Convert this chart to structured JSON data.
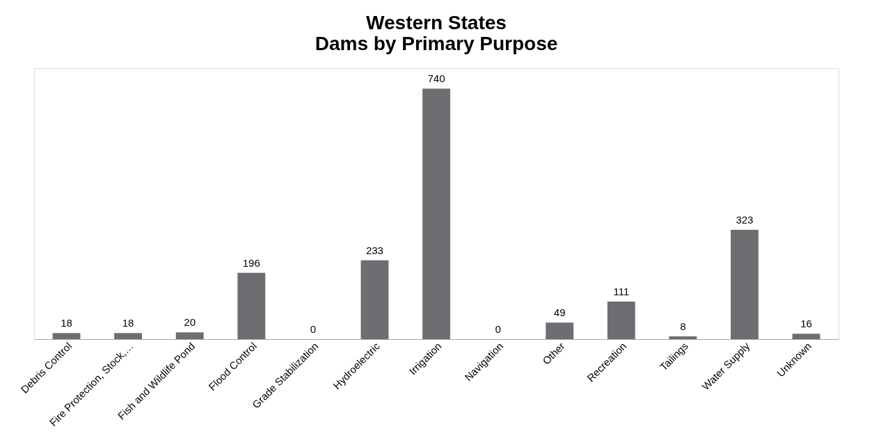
{
  "chart_data": {
    "type": "bar",
    "title": "Western States\nDams by Primary Purpose",
    "categories": [
      "Debris Control",
      "Fire Protection, Stock,…",
      "Fish and Wildlife Pond",
      "Flood Control",
      "Grade Stabilization",
      "Hydroelectric",
      "Irrigation",
      "Navigation",
      "Other",
      "Recreation",
      "Tailings",
      "Water Supply",
      "Unknown"
    ],
    "values": [
      18,
      18,
      20,
      196,
      0,
      233,
      740,
      0,
      49,
      111,
      8,
      323,
      16
    ],
    "color": "#6e6e72",
    "data_labels": true,
    "tick_labels": "x",
    "grid": false
  }
}
